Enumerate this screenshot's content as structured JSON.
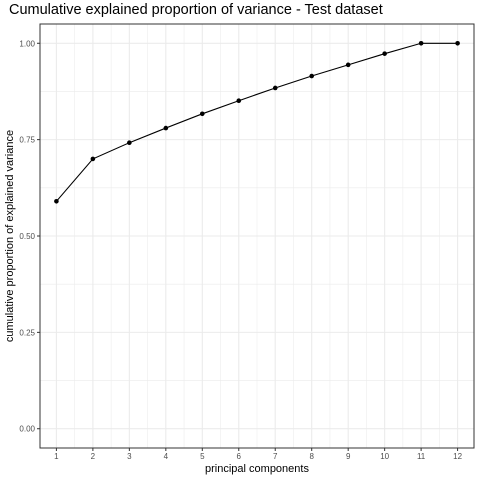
{
  "chart_data": {
    "type": "line",
    "title": "Cumulative explained proportion of variance - Test dataset",
    "xlabel": "principal components",
    "ylabel": "cumulative proportion of explained variance",
    "x": [
      1,
      2,
      3,
      4,
      5,
      6,
      7,
      8,
      9,
      10,
      11,
      12
    ],
    "x_tick_labels": [
      "1",
      "2",
      "3",
      "4",
      "5",
      "6",
      "7",
      "8",
      "9",
      "10",
      "11",
      "12"
    ],
    "y": [
      0.59,
      0.7,
      0.742,
      0.78,
      0.817,
      0.851,
      0.884,
      0.915,
      0.944,
      0.973,
      1.0,
      1.0
    ],
    "y_ticks": [
      0.0,
      0.25,
      0.5,
      0.75,
      1.0
    ],
    "y_tick_labels": [
      "0.00",
      "0.25",
      "0.50",
      "0.75",
      "1.00"
    ],
    "xlim": [
      0.55,
      12.45
    ],
    "ylim": [
      -0.05,
      1.05
    ],
    "grid": true,
    "line_color": "#000000",
    "point_color": "#000000",
    "grid_color": "#ebebeb",
    "panel_border_color": "#333333"
  }
}
